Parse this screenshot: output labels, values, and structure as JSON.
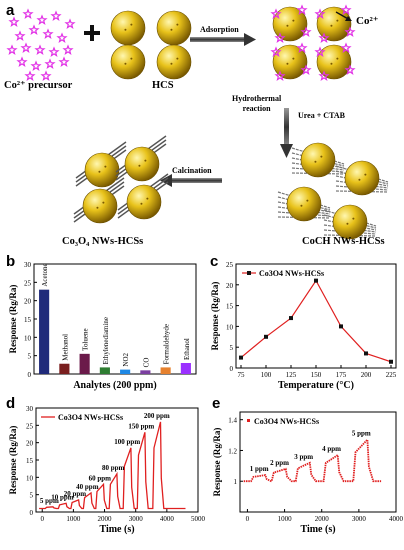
{
  "panel_a": {
    "letter": "a",
    "labels": {
      "precursor": "Co²⁺ precursor",
      "hcs": "HCS",
      "adsorption": "Adsorption",
      "co_ion": "Co²⁺",
      "hydrothermal": "Hydrothermal\nreaction",
      "urea": "Urea + CTAB",
      "coch": "CoCH NWs-HCSs",
      "calcination": "Calcination",
      "co3o4": "Co₃O₄ NWs-HCSs"
    },
    "colors": {
      "sphere": "#e8c21a",
      "sphere_dark": "#8a6a00",
      "precursor": "#e232e6",
      "arrow": "#444444"
    }
  },
  "chart_data": [
    {
      "panel": "b",
      "type": "bar",
      "title": "",
      "xlabel": "Analytes (200 ppm)",
      "ylabel": "Response (Rg/Ra)",
      "ylim": [
        0,
        30
      ],
      "yticks": [
        0,
        5,
        10,
        15,
        20,
        25,
        30
      ],
      "categories": [
        "Acetone",
        "Methanol",
        "Toluene",
        "Ethylenediamine",
        "NO2",
        "CO",
        "Formaldehyde",
        "Ethanol"
      ],
      "values": [
        23,
        2.8,
        5.5,
        1.8,
        1.2,
        1.0,
        1.8,
        3.0
      ],
      "colors": [
        "#1f2a7a",
        "#7a1f1f",
        "#6b1a4a",
        "#2e7d32",
        "#1e88e5",
        "#7b3fa0",
        "#e6812e",
        "#9b30ff"
      ]
    },
    {
      "panel": "c",
      "type": "line",
      "title": "",
      "xlabel": "Temperature (°C)",
      "ylabel": "Response (Rg/Ra)",
      "legend": "Co3O4 NWs-HCSs",
      "legend_position": "top-left",
      "xlim": [
        70,
        230
      ],
      "ylim": [
        0,
        25
      ],
      "xticks": [
        75,
        100,
        125,
        150,
        175,
        200,
        225
      ],
      "yticks": [
        0,
        5,
        10,
        15,
        20,
        25
      ],
      "x": [
        75,
        100,
        125,
        150,
        175,
        200,
        225
      ],
      "y": [
        2.5,
        7.5,
        12.0,
        21.0,
        10.0,
        3.5,
        1.5
      ],
      "color": "#e02020"
    },
    {
      "panel": "d",
      "type": "line",
      "title": "",
      "xlabel": "Time (s)",
      "ylabel": "Response (Rg/Ra)",
      "legend": "Co3O4 NWs-HCSs",
      "legend_position": "top-left",
      "xlim": [
        -200,
        5000
      ],
      "ylim": [
        0,
        30
      ],
      "xticks": [
        0,
        1000,
        2000,
        3000,
        4000,
        5000
      ],
      "yticks": [
        0,
        5,
        10,
        15,
        20,
        25,
        30
      ],
      "pulse_starts": [
        100,
        520,
        920,
        1320,
        1720,
        2150,
        2600,
        3050,
        3550
      ],
      "peaks": [
        1.5,
        2.5,
        3.5,
        5.5,
        8.0,
        11.0,
        18.5,
        23.0,
        26.0
      ],
      "pulse_duration": 260,
      "annotations": [
        "5 ppm",
        "10 ppm",
        "20 ppm",
        "40 ppm",
        "60 ppm",
        "80 ppm",
        "100 ppm",
        "150 ppm",
        "200 ppm"
      ],
      "color": "#e02020"
    },
    {
      "panel": "e",
      "type": "line",
      "title": "",
      "xlabel": "Time (s)",
      "ylabel": "Response (Rg/Ra)",
      "legend": "Co3O4 NWs-HCSs",
      "legend_position": "top-left",
      "xlim": [
        -200,
        4000
      ],
      "ylim": [
        0.8,
        1.45
      ],
      "xticks": [
        0,
        1000,
        2000,
        3000,
        4000
      ],
      "yticks": [
        1.0,
        1.2,
        1.4
      ],
      "pulse_starts": [
        100,
        650,
        1300,
        2050,
        2850
      ],
      "peaks": [
        1.04,
        1.08,
        1.12,
        1.17,
        1.27
      ],
      "pulse_duration": 400,
      "annotations": [
        "1 ppm",
        "2 ppm",
        "3 ppm",
        "4 ppm",
        "5 ppm"
      ],
      "color": "#e02020"
    }
  ]
}
